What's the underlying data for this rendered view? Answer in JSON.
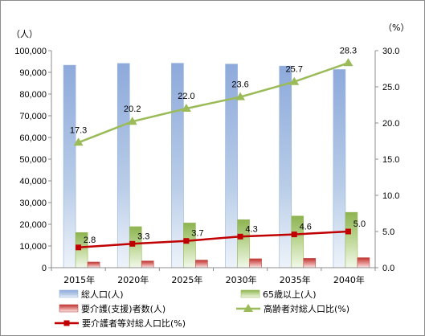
{
  "chart_data": {
    "type": "bar",
    "title": "",
    "left_axis": {
      "unit_label": "（人）",
      "min": 0,
      "max": 100000,
      "step": 10000,
      "tick_labels": [
        "0",
        "10,000",
        "20,000",
        "30,000",
        "40,000",
        "50,000",
        "60,000",
        "70,000",
        "80,000",
        "90,000",
        "100,000"
      ]
    },
    "right_axis": {
      "unit_label": "（%）",
      "min": 0,
      "max": 30,
      "step": 5,
      "tick_labels": [
        "0.0",
        "5.0",
        "10.0",
        "15.0",
        "20.0",
        "25.0",
        "30.0"
      ]
    },
    "categories": [
      "2015年",
      "2020年",
      "2025年",
      "2030年",
      "2035年",
      "2040年"
    ],
    "grid": false,
    "legend_position": "bottom",
    "series": [
      {
        "name": "総人口(人)",
        "kind": "bar",
        "axis": "left",
        "color": "#95B3D7",
        "values": [
          93300,
          94100,
          94200,
          93800,
          92900,
          91300
        ]
      },
      {
        "name": "65歳以上(人)",
        "kind": "bar",
        "axis": "left",
        "color": "#9BBB59",
        "values": [
          16200,
          18900,
          20600,
          22100,
          23800,
          25500
        ]
      },
      {
        "name": "要介護(支援)者数(人)",
        "kind": "bar",
        "axis": "left",
        "color": "#C0504D",
        "values": [
          2600,
          3100,
          3500,
          4100,
          4300,
          4600
        ]
      },
      {
        "name": "高齢者対総人口比(%)",
        "kind": "line",
        "axis": "right",
        "color": "#9BBB59",
        "marker": "triangle",
        "values": [
          17.3,
          20.2,
          22.0,
          23.6,
          25.7,
          28.3
        ],
        "labels": [
          "17.3",
          "20.2",
          "22.0",
          "23.6",
          "25.7",
          "28.3"
        ]
      },
      {
        "name": "要介護者等対総人口比(%)",
        "kind": "line",
        "axis": "right",
        "color": "#C00000",
        "marker": "square",
        "values": [
          2.8,
          3.3,
          3.7,
          4.3,
          4.6,
          5.0
        ],
        "labels": [
          "2.8",
          "3.3",
          "3.7",
          "4.3",
          "4.6",
          "5.0"
        ]
      }
    ]
  }
}
